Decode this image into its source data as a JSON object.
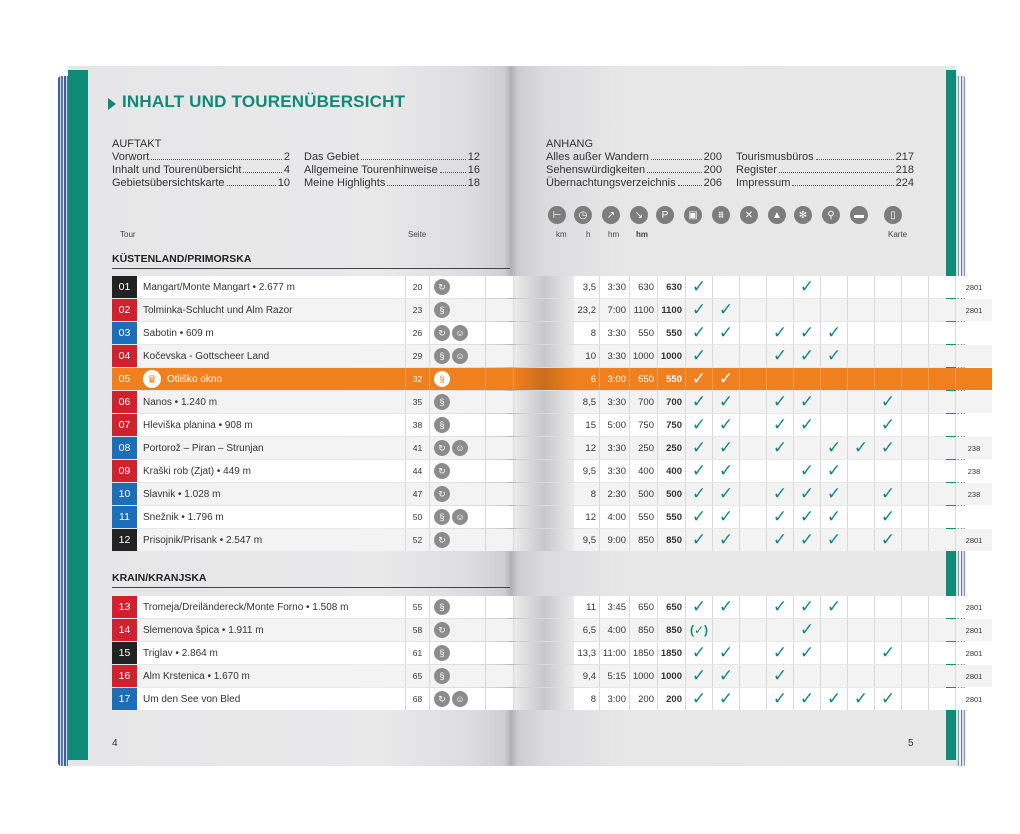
{
  "title": "INHALT UND TOURENÜBERSICHT",
  "auftakt": {
    "heading": "AUFTAKT",
    "col1": [
      {
        "label": "Vorwort",
        "page": "2"
      },
      {
        "label": "Inhalt und Tourenübersicht",
        "page": "4"
      },
      {
        "label": "Gebietsübersichtskarte",
        "page": "10"
      }
    ],
    "col2": [
      {
        "label": "Das Gebiet",
        "page": "12"
      },
      {
        "label": "Allgemeine Tourenhinweise",
        "page": "16"
      },
      {
        "label": "Meine Highlights",
        "page": "18"
      }
    ]
  },
  "anhang": {
    "heading": "ANHANG",
    "col1": [
      {
        "label": "Alles außer Wandern",
        "page": "200"
      },
      {
        "label": "Sehenswürdigkeiten",
        "page": "200"
      },
      {
        "label": "Übernachtungsverzeichnis",
        "page": "206"
      }
    ],
    "col2": [
      {
        "label": "Tourismusbüros",
        "page": "217"
      },
      {
        "label": "Register",
        "page": "218"
      },
      {
        "label": "Impressum",
        "page": "224"
      }
    ]
  },
  "columns": {
    "tour": "Tour",
    "seite": "Seite",
    "km": "km",
    "h": "h",
    "hm_up": "hm",
    "hm_down": "hm",
    "karte": "Karte"
  },
  "header_icons": [
    "signpost-icon",
    "clock-icon",
    "ascent-icon",
    "descent-icon",
    "parking-icon",
    "bus-icon",
    "cablecar-icon",
    "restaurant-icon",
    "summit-icon",
    "winter-icon",
    "bike-icon",
    "hut-icon",
    "map-icon"
  ],
  "header_icon_glyphs": [
    "⊢",
    "◷",
    "↗",
    "↘",
    "P",
    "▣",
    "⩩",
    "✕",
    "▲",
    "✻",
    "⚲",
    "▬",
    "▯"
  ],
  "regions": [
    "KÜSTENLAND/PRIMORSKA",
    "KRAIN/KRANJSKA"
  ],
  "colors": {
    "green": "#0e8a76",
    "orange": "#f07f1d",
    "red": "#d1202e",
    "blue": "#1c6fb6",
    "black": "#222222"
  },
  "tours": [
    {
      "no": "01",
      "color": "black",
      "name": "Mangart/Monte Mangart • 2.677 m",
      "page": "20",
      "icons": [
        "loop"
      ],
      "km": "3,5",
      "h": "3:30",
      "up": "630",
      "down": "630",
      "checks": [
        1,
        0,
        0,
        0,
        1,
        0,
        0,
        0,
        0,
        0
      ],
      "map": "2801"
    },
    {
      "no": "02",
      "color": "red",
      "name": "Tolminka-Schlucht und Alm Razor",
      "page": "23",
      "icons": [
        "line"
      ],
      "km": "23,2",
      "h": "7:00",
      "up": "1100",
      "down": "1100",
      "checks": [
        1,
        1,
        0,
        0,
        0,
        0,
        0,
        0,
        0,
        0
      ],
      "map": "2801"
    },
    {
      "no": "03",
      "color": "blue",
      "name": "Sabotin • 609 m",
      "page": "26",
      "icons": [
        "loop",
        "kid"
      ],
      "km": "8",
      "h": "3:30",
      "up": "550",
      "down": "550",
      "checks": [
        1,
        1,
        0,
        1,
        1,
        1,
        0,
        0,
        0,
        0
      ],
      "map": ""
    },
    {
      "no": "04",
      "color": "red",
      "name": "Kočevska - Gottscheer Land",
      "page": "29",
      "icons": [
        "line",
        "kid"
      ],
      "km": "10",
      "h": "3:30",
      "up": "1000",
      "down": "1000",
      "checks": [
        1,
        0,
        0,
        1,
        1,
        1,
        0,
        0,
        0,
        0
      ],
      "map": ""
    },
    {
      "no": "05",
      "color": "orange",
      "name": "Otliško okno",
      "page": "32",
      "icons": [
        "line"
      ],
      "km": "6",
      "h": "3:00",
      "up": "550",
      "down": "550",
      "checks": [
        1,
        1,
        0,
        0,
        0,
        0,
        0,
        0,
        0,
        0
      ],
      "map": "",
      "highlight": true
    },
    {
      "no": "06",
      "color": "red",
      "name": "Nanos • 1.240 m",
      "page": "35",
      "icons": [
        "line"
      ],
      "km": "8,5",
      "h": "3:30",
      "up": "700",
      "down": "700",
      "checks": [
        1,
        1,
        0,
        1,
        1,
        0,
        0,
        1,
        0,
        0
      ],
      "map": ""
    },
    {
      "no": "07",
      "color": "red",
      "name": "Hleviška planina • 908 m",
      "page": "38",
      "icons": [
        "line"
      ],
      "km": "15",
      "h": "5:00",
      "up": "750",
      "down": "750",
      "checks": [
        1,
        1,
        0,
        1,
        1,
        0,
        0,
        1,
        0,
        0
      ],
      "map": ""
    },
    {
      "no": "08",
      "color": "blue",
      "name": "Portorož – Piran – Strunjan",
      "page": "41",
      "icons": [
        "loop",
        "kid"
      ],
      "km": "12",
      "h": "3:30",
      "up": "250",
      "down": "250",
      "checks": [
        1,
        1,
        0,
        1,
        0,
        1,
        1,
        1,
        0,
        0
      ],
      "map": "238"
    },
    {
      "no": "09",
      "color": "red",
      "name": "Kraški rob (Zjat) • 449 m",
      "page": "44",
      "icons": [
        "loop"
      ],
      "km": "9,5",
      "h": "3:30",
      "up": "400",
      "down": "400",
      "checks": [
        1,
        1,
        0,
        0,
        1,
        1,
        0,
        0,
        0,
        0
      ],
      "map": "238"
    },
    {
      "no": "10",
      "color": "blue",
      "name": "Slavnik • 1.028 m",
      "page": "47",
      "icons": [
        "loop"
      ],
      "km": "8",
      "h": "2:30",
      "up": "500",
      "down": "500",
      "checks": [
        1,
        1,
        0,
        1,
        1,
        1,
        0,
        1,
        0,
        0
      ],
      "map": "238"
    },
    {
      "no": "11",
      "color": "blue",
      "name": "Snežnik • 1.796 m",
      "page": "50",
      "icons": [
        "line",
        "kid"
      ],
      "km": "12",
      "h": "4:00",
      "up": "550",
      "down": "550",
      "checks": [
        1,
        1,
        0,
        1,
        1,
        1,
        0,
        1,
        0,
        0
      ],
      "map": ""
    },
    {
      "no": "12",
      "color": "black",
      "name": "Prisojnik/Prisank • 2.547 m",
      "page": "52",
      "icons": [
        "loop"
      ],
      "km": "9,5",
      "h": "9:00",
      "up": "850",
      "down": "850",
      "checks": [
        1,
        1,
        0,
        1,
        1,
        1,
        0,
        1,
        0,
        0
      ],
      "map": "2801"
    },
    {
      "no": "13",
      "color": "red",
      "name": "Tromeja/Dreiländereck/Monte Forno • 1.508 m",
      "page": "55",
      "icons": [
        "line"
      ],
      "km": "11",
      "h": "3:45",
      "up": "650",
      "down": "650",
      "checks": [
        1,
        1,
        0,
        1,
        1,
        1,
        0,
        0,
        0,
        0
      ],
      "map": "2801"
    },
    {
      "no": "14",
      "color": "red",
      "name": "Slemenova špica • 1.911 m",
      "page": "58",
      "icons": [
        "loop"
      ],
      "km": "6,5",
      "h": "4:00",
      "up": "850",
      "down": "850",
      "checks": [
        "(✓)",
        0,
        0,
        0,
        1,
        0,
        0,
        0,
        0,
        0
      ],
      "map": "2801"
    },
    {
      "no": "15",
      "color": "black",
      "name": "Triglav • 2.864 m",
      "page": "61",
      "icons": [
        "line"
      ],
      "km": "13,3",
      "h": "11:00",
      "up": "1850",
      "down": "1850",
      "checks": [
        1,
        1,
        0,
        1,
        1,
        0,
        0,
        1,
        0,
        0
      ],
      "map": "2801"
    },
    {
      "no": "16",
      "color": "red",
      "name": "Alm Krstenica • 1.670 m",
      "page": "65",
      "icons": [
        "line"
      ],
      "km": "9,4",
      "h": "5:15",
      "up": "1000",
      "down": "1000",
      "checks": [
        1,
        1,
        0,
        1,
        0,
        0,
        0,
        0,
        0,
        0
      ],
      "map": "2801"
    },
    {
      "no": "17",
      "color": "blue",
      "name": "Um den See von Bled",
      "page": "68",
      "icons": [
        "loop",
        "kid"
      ],
      "km": "8",
      "h": "3:00",
      "up": "200",
      "down": "200",
      "checks": [
        1,
        1,
        0,
        1,
        1,
        1,
        1,
        1,
        0,
        0
      ],
      "map": "2801"
    }
  ],
  "page_numbers": {
    "left": "4",
    "right": "5"
  }
}
